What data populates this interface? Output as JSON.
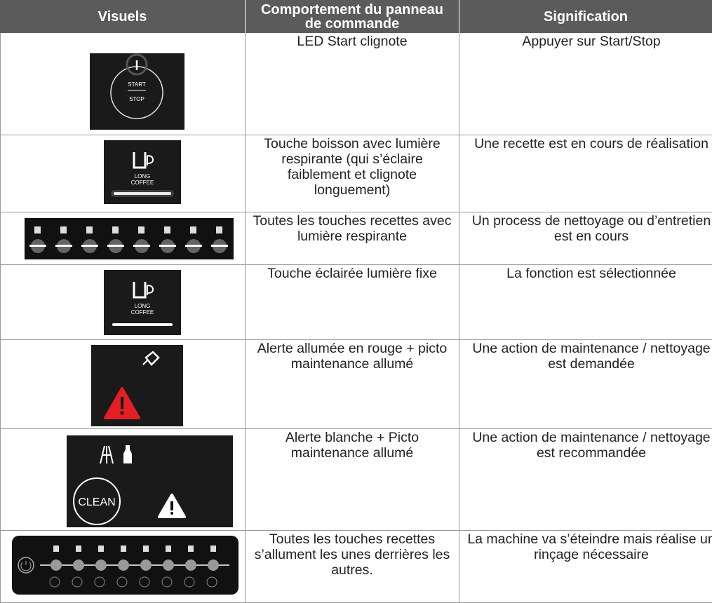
{
  "table": {
    "header": [
      "Visuels",
      "Comportement du panneau de commande",
      "Signification"
    ],
    "rows": [
      {
        "visual": [
          "START",
          "STOP"
        ],
        "behavior": "LED Start clignote",
        "meaning": "Appuyer sur Start/Stop"
      },
      {
        "visual": [
          "LONG",
          "COFFEE"
        ],
        "behavior": "Touche boisson avec lumière respirante (qui s’éclaire faiblement et clignote longuement)",
        "meaning": "Une recette est en cours de réalisation"
      },
      {
        "behavior": "Toutes les touches recettes avec lumière respirante",
        "meaning": "Un process de nettoyage ou d’entretien est en cours"
      },
      {
        "visual": [
          "LONG",
          "COFFEE"
        ],
        "behavior": "Touche éclairée lumière fixe",
        "meaning": "La fonction est sélectionnée"
      },
      {
        "behavior": "Alerte allumée en rouge + picto maintenance allumé",
        "meaning": "Une action de maintenance / nettoyage est demandée"
      },
      {
        "visual": [
          "CLEAN"
        ],
        "behavior": "Alerte blanche + Picto maintenance allumé",
        "meaning": "Une action de maintenance / nettoyage est recommandée"
      },
      {
        "behavior": "Toutes les touches recettes s’allument les unes derrières les autres.",
        "meaning": "La machine va s’éteindre mais réalise un rinçage nécessaire"
      }
    ]
  }
}
